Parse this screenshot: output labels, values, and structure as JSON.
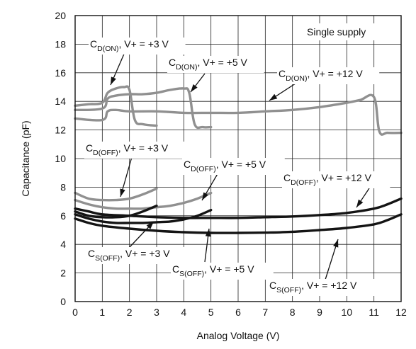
{
  "chart_data": {
    "type": "line",
    "title": "",
    "xlabel": "Analog Voltage (V)",
    "ylabel": "Capacitance (pF)",
    "xlim": [
      0,
      12
    ],
    "ylim": [
      0,
      20
    ],
    "x_ticks": [
      0,
      1,
      2,
      3,
      4,
      5,
      6,
      7,
      8,
      9,
      10,
      11,
      12
    ],
    "y_ticks": [
      0,
      2,
      4,
      6,
      8,
      10,
      12,
      14,
      16,
      18,
      20
    ],
    "grid": true,
    "legend": "none",
    "annotation_box": "Single supply",
    "colors": {
      "gray": "#909090",
      "black": "#141414"
    },
    "series": [
      {
        "name": "CD(ON), V+ = +3 V",
        "label_main": "C",
        "label_sub": "D(ON)",
        "label_rest": ", V+ = +3 V",
        "color": "gray",
        "x": [
          0,
          0.5,
          1.0,
          1.2,
          1.5,
          1.8,
          2.0,
          2.2,
          2.5,
          3.0
        ],
        "y": [
          13.7,
          13.8,
          13.9,
          14.6,
          14.9,
          15.0,
          14.8,
          12.7,
          12.4,
          12.3
        ]
      },
      {
        "name": "CD(ON), V+ = +5 V",
        "label_main": "C",
        "label_sub": "D(ON)",
        "label_rest": ", V+ = +5 V",
        "color": "gray",
        "x": [
          0,
          1.0,
          1.2,
          1.5,
          2.0,
          2.5,
          3.0,
          3.5,
          4.0,
          4.2,
          4.4,
          4.7,
          5.0
        ],
        "y": [
          13.4,
          13.5,
          14.2,
          14.4,
          14.5,
          14.5,
          14.6,
          14.8,
          14.9,
          14.6,
          12.4,
          12.2,
          12.2
        ]
      },
      {
        "name": "CD(ON), V+ = +12 V",
        "label_main": "C",
        "label_sub": "D(ON)",
        "label_rest": ", V+ = +12 V",
        "color": "gray",
        "x": [
          0,
          1.0,
          1.2,
          1.5,
          2,
          3,
          4,
          5,
          6,
          7,
          8,
          9,
          10,
          10.5,
          11.0,
          11.2,
          11.5,
          12
        ],
        "y": [
          12.8,
          12.7,
          13.3,
          13.4,
          13.3,
          13.3,
          13.2,
          13.2,
          13.2,
          13.3,
          13.4,
          13.6,
          13.9,
          14.1,
          14.3,
          11.9,
          11.8,
          11.8
        ]
      },
      {
        "name": "CD(OFF), V+ = +3 V",
        "label_main": "C",
        "label_sub": "D(OFF)",
        "label_rest": ", V+ = +3 V",
        "color": "gray",
        "x": [
          0,
          0.5,
          1.0,
          1.5,
          2.0,
          2.5,
          3.0
        ],
        "y": [
          7.6,
          7.2,
          7.1,
          7.1,
          7.2,
          7.5,
          7.9
        ]
      },
      {
        "name": "CD(OFF), V+ = +5 V",
        "label_main": "C",
        "label_sub": "D(OFF)",
        "label_rest": ", V+ = +5 V",
        "color": "gray",
        "x": [
          0,
          0.5,
          1.0,
          1.5,
          2.0,
          2.5,
          3.0,
          3.5,
          4.0,
          4.5,
          5.0
        ],
        "y": [
          7.1,
          6.8,
          6.6,
          6.5,
          6.5,
          6.5,
          6.6,
          6.7,
          6.9,
          7.2,
          7.6
        ]
      },
      {
        "name": "CD(OFF), V+ = +12 V",
        "label_main": "C",
        "label_sub": "D(OFF)",
        "label_rest": ", V+ = +12 V",
        "color": "black",
        "x": [
          0,
          0.5,
          1,
          2,
          3,
          4,
          5,
          6,
          7,
          8,
          9,
          10,
          11,
          11.5,
          12
        ],
        "y": [
          6.5,
          6.3,
          6.1,
          6.0,
          5.9,
          5.85,
          5.85,
          5.85,
          5.9,
          5.95,
          6.05,
          6.2,
          6.5,
          6.8,
          7.2
        ]
      },
      {
        "name": "CS(OFF), V+ = +3 V",
        "label_main": "C",
        "label_sub": "S(OFF)",
        "label_rest": ", V+ = +3 V",
        "color": "black",
        "x": [
          0,
          0.5,
          1.0,
          1.5,
          2.0,
          2.5,
          3.0
        ],
        "y": [
          6.3,
          6.0,
          5.9,
          5.9,
          6.0,
          6.3,
          6.7
        ]
      },
      {
        "name": "CS(OFF), V+ = +5 V",
        "label_main": "C",
        "label_sub": "S(OFF)",
        "label_rest": ", V+ = +5 V",
        "color": "black",
        "x": [
          0,
          0.5,
          1.0,
          1.5,
          2.0,
          2.5,
          3.0,
          3.5,
          4.0,
          4.5,
          5.0
        ],
        "y": [
          6.1,
          5.8,
          5.6,
          5.5,
          5.5,
          5.5,
          5.55,
          5.6,
          5.75,
          6.0,
          6.4
        ]
      },
      {
        "name": "CS(OFF), V+ = +12 V",
        "label_main": "C",
        "label_sub": "S(OFF)",
        "label_rest": ", V+ = +12 V",
        "color": "black",
        "x": [
          0,
          0.5,
          1,
          2,
          3,
          4,
          5,
          6,
          7,
          8,
          9,
          10,
          11,
          11.5,
          12
        ],
        "y": [
          5.8,
          5.5,
          5.3,
          5.1,
          4.95,
          4.85,
          4.8,
          4.8,
          4.82,
          4.88,
          5.0,
          5.15,
          5.4,
          5.7,
          6.1
        ]
      }
    ]
  }
}
